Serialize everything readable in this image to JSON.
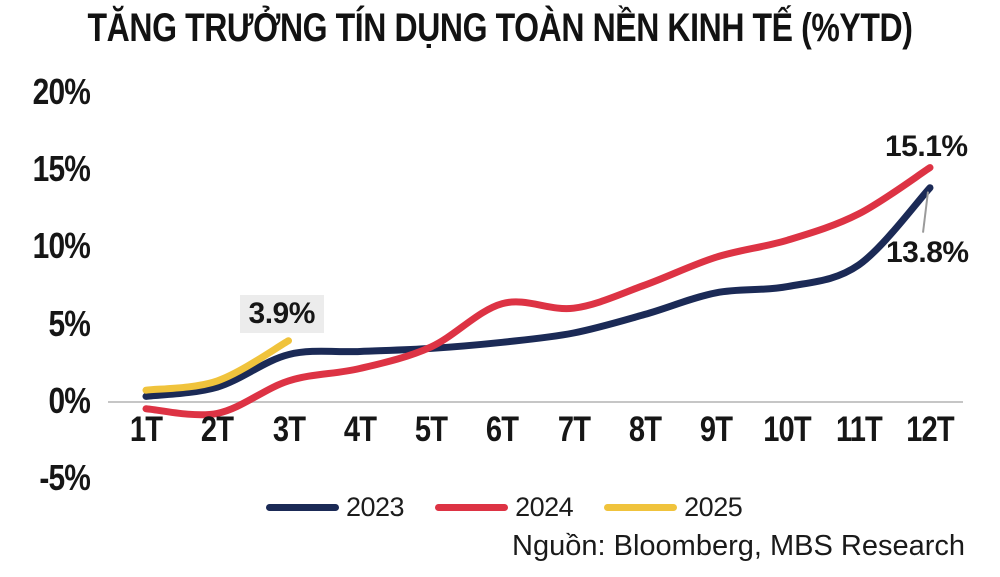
{
  "title": "TĂNG TRƯỞNG TÍN DỤNG TOÀN NỀN KINH TẾ (%YTD)",
  "source": "Nguồn: Bloomberg, MBS Research",
  "colors": {
    "series_2023": "#1b2a56",
    "series_2024": "#dd3344",
    "series_2025": "#f0c33c",
    "zero_axis": "#c6c6c6",
    "leader_line": "#9b9b9b",
    "annotation_box": "#ececec",
    "text": "#161616"
  },
  "chart_data": {
    "type": "line",
    "title": "TĂNG TRƯỞNG TÍN DỤNG TOÀN NỀN KINH TẾ (%YTD)",
    "xlabel": "",
    "ylabel": "",
    "categories": [
      "1T",
      "2T",
      "3T",
      "4T",
      "5T",
      "6T",
      "7T",
      "8T",
      "9T",
      "10T",
      "11T",
      "12T"
    ],
    "y_tick_labels": [
      "20%",
      "15%",
      "10%",
      "5%",
      "0%",
      "-5%"
    ],
    "y_tick_values": [
      20,
      15,
      10,
      5,
      0,
      -5
    ],
    "ylim": [
      -5,
      20
    ],
    "grid": false,
    "legend_position": "bottom",
    "series": [
      {
        "name": "2023",
        "color": "#1b2a56",
        "values": [
          0.3,
          0.9,
          3.0,
          3.2,
          3.4,
          3.8,
          4.4,
          5.6,
          7.0,
          7.4,
          8.8,
          13.8
        ]
      },
      {
        "name": "2024",
        "color": "#dd3344",
        "values": [
          -0.5,
          -0.8,
          1.3,
          2.1,
          3.5,
          6.3,
          6.0,
          7.5,
          9.3,
          10.4,
          12.1,
          15.1
        ]
      },
      {
        "name": "2025",
        "color": "#f0c33c",
        "values": [
          0.7,
          1.3,
          3.9
        ]
      }
    ],
    "annotations": [
      {
        "text": "3.9%",
        "series": "2025",
        "placement": "above",
        "boxed": true,
        "leader": false
      },
      {
        "text": "15.1%",
        "series": "2024",
        "placement": "above",
        "boxed": false,
        "leader": false
      },
      {
        "text": "13.8%",
        "series": "2023",
        "placement": "below",
        "boxed": false,
        "leader": true
      }
    ]
  }
}
